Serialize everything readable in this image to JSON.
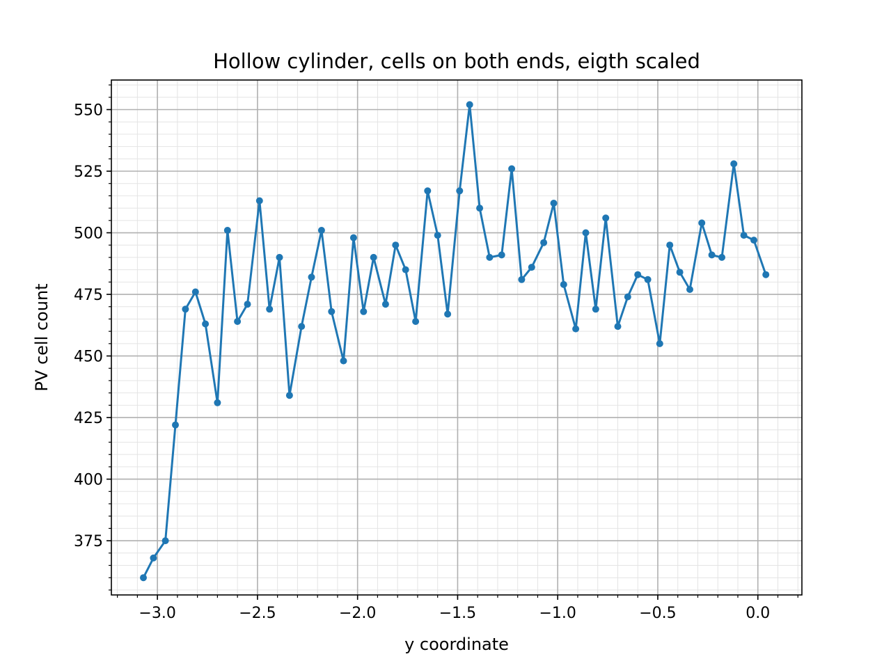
{
  "chart_data": {
    "type": "line",
    "title": "Hollow cylinder, cells on both ends, eigth scaled",
    "xlabel": "y coordinate",
    "ylabel": "PV cell count",
    "xlim": [
      -3.23,
      0.22
    ],
    "ylim": [
      353,
      562
    ],
    "x_ticks": [
      {
        "value": -3.0,
        "label": "−3.0"
      },
      {
        "value": -2.5,
        "label": "−2.5"
      },
      {
        "value": -2.0,
        "label": "−2.0"
      },
      {
        "value": -1.5,
        "label": "−1.5"
      },
      {
        "value": -1.0,
        "label": "−1.0"
      },
      {
        "value": -0.5,
        "label": "−0.5"
      },
      {
        "value": 0.0,
        "label": "0.0"
      }
    ],
    "y_ticks": [
      {
        "value": 375,
        "label": "375"
      },
      {
        "value": 400,
        "label": "400"
      },
      {
        "value": 425,
        "label": "425"
      },
      {
        "value": 450,
        "label": "450"
      },
      {
        "value": 475,
        "label": "475"
      },
      {
        "value": 500,
        "label": "500"
      },
      {
        "value": 525,
        "label": "525"
      },
      {
        "value": 550,
        "label": "550"
      }
    ],
    "grid": true,
    "minor_grid": true,
    "color": "#1f77b4",
    "marker": "circle",
    "series": [
      {
        "x": [
          -3.07,
          -3.02,
          -2.96,
          -2.91,
          -2.86,
          -2.81,
          -2.76,
          -2.7,
          -2.65,
          -2.6,
          -2.55,
          -2.49,
          -2.44,
          -2.39,
          -2.34,
          -2.28,
          -2.23,
          -2.18,
          -2.13,
          -2.07,
          -2.02,
          -1.97,
          -1.92,
          -1.86,
          -1.81,
          -1.76,
          -1.71,
          -1.65,
          -1.6,
          -1.55,
          -1.49,
          -1.44,
          -1.39,
          -1.34,
          -1.28,
          -1.23,
          -1.18,
          -1.13,
          -1.07,
          -1.02,
          -0.97,
          -0.91,
          -0.86,
          -0.81,
          -0.76,
          -0.7,
          -0.65,
          -0.6,
          -0.55,
          -0.49,
          -0.44,
          -0.39,
          -0.34,
          -0.28,
          -0.23,
          -0.18,
          -0.12,
          -0.07,
          -0.02,
          0.04
        ],
        "values": [
          360,
          368,
          375,
          422,
          469,
          476,
          463,
          431,
          501,
          464,
          471,
          513,
          469,
          490,
          434,
          462,
          482,
          501,
          468,
          448,
          498,
          468,
          490,
          471,
          495,
          485,
          464,
          517,
          499,
          467,
          517,
          552,
          510,
          490,
          491,
          526,
          481,
          486,
          496,
          512,
          479,
          461,
          500,
          469,
          506,
          462,
          474,
          483,
          481,
          455,
          495,
          484,
          477,
          504,
          491,
          490,
          528,
          499,
          497,
          483
        ]
      }
    ]
  }
}
